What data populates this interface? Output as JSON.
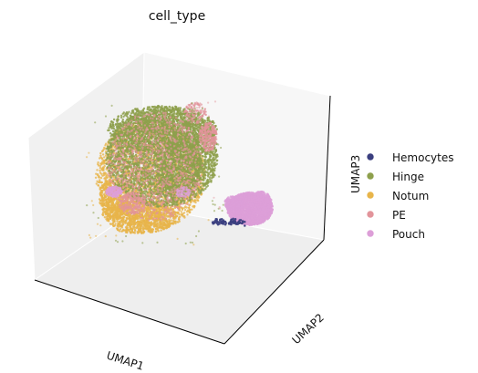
{
  "chart_data": {
    "type": "scatter",
    "projection": "3d",
    "title": "cell_type",
    "xlabel": "UMAP1",
    "ylabel": "UMAP2",
    "zlabel": "UMAP3",
    "grid": false,
    "ticks": false,
    "legend": {
      "placement": "right",
      "entries": [
        "Hemocytes",
        "Hinge",
        "Notum",
        "PE",
        "Pouch"
      ]
    },
    "series": [
      {
        "name": "Hemocytes",
        "color": "#3b3f7f"
      },
      {
        "name": "Hinge",
        "color": "#8ea04c"
      },
      {
        "name": "Notum",
        "color": "#e8b54a"
      },
      {
        "name": "PE",
        "color": "#e2949b"
      },
      {
        "name": "Pouch",
        "color": "#dd9fd8"
      }
    ]
  }
}
